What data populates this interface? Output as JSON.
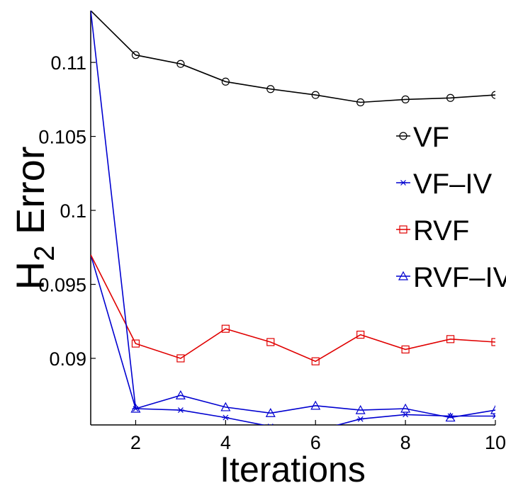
{
  "chart_data": {
    "type": "line",
    "title": "",
    "xlabel": "Iterations",
    "ylabel_main": "H",
    "ylabel_sub": "2",
    "ylabel_rest": " Error",
    "xlim": [
      1,
      10
    ],
    "ylim": [
      0.0855,
      0.1135
    ],
    "xticks": [
      2,
      4,
      6,
      8,
      10
    ],
    "xtick_labels": [
      "2",
      "4",
      "6",
      "8",
      "10"
    ],
    "yticks": [
      0.09,
      0.095,
      0.1,
      0.105,
      0.11
    ],
    "ytick_labels": [
      "0.09",
      "0.095",
      "0.1",
      "0.105",
      "0.11"
    ],
    "grid": false,
    "legend_position": "right",
    "series": [
      {
        "name": "VF",
        "color": "#000000",
        "marker": "circle",
        "x": [
          1,
          2,
          3,
          4,
          5,
          6,
          7,
          8,
          9,
          10
        ],
        "y": [
          0.1135,
          0.1105,
          0.1099,
          0.1087,
          0.1082,
          0.1078,
          0.1073,
          0.1075,
          0.1076,
          0.1078
        ]
      },
      {
        "name": "VF–IV",
        "color": "#0000d0",
        "marker": "star",
        "x": [
          1,
          2,
          3,
          4,
          5,
          6,
          7,
          8,
          9,
          10
        ],
        "y": [
          0.097,
          0.0866,
          0.0865,
          0.086,
          0.0854,
          0.0851,
          0.0859,
          0.0862,
          0.0861,
          0.0861
        ]
      },
      {
        "name": "RVF",
        "color": "#e00000",
        "marker": "square",
        "x": [
          1,
          2,
          3,
          4,
          5,
          6,
          7,
          8,
          9,
          10
        ],
        "y": [
          0.097,
          0.091,
          0.09,
          0.092,
          0.0911,
          0.0898,
          0.0916,
          0.0906,
          0.0913,
          0.0911
        ]
      },
      {
        "name": "RVF–IV",
        "color": "#0000d0",
        "marker": "triangle",
        "x": [
          1,
          2,
          3,
          4,
          5,
          6,
          7,
          8,
          9,
          10
        ],
        "y": [
          0.1135,
          0.0866,
          0.0875,
          0.0867,
          0.0863,
          0.0868,
          0.0865,
          0.0866,
          0.086,
          0.0865
        ]
      }
    ]
  }
}
